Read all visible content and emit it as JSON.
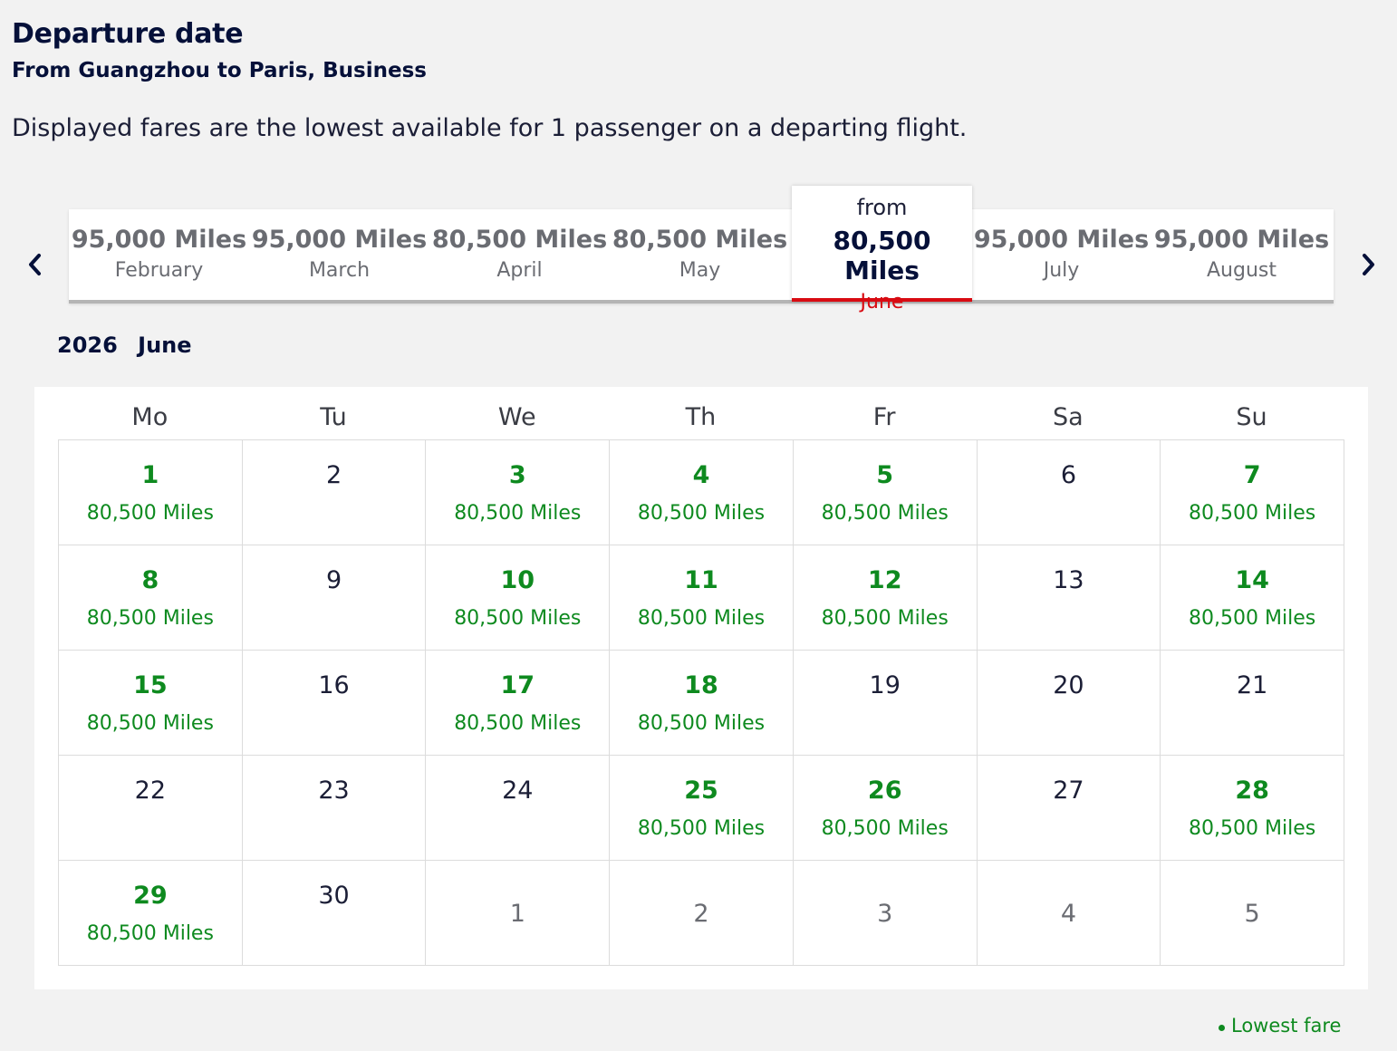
{
  "header": {
    "title": "Departure date",
    "subtitle": "From Guangzhou to Paris, Business",
    "note": "Displayed fares are the lowest available for 1 passenger on a departing flight."
  },
  "carousel": {
    "prev_icon": "chevron-left-icon",
    "next_icon": "chevron-right-icon",
    "months": [
      {
        "price": "95,000 Miles",
        "month": "February"
      },
      {
        "price": "95,000 Miles",
        "month": "March"
      },
      {
        "price": "80,500 Miles",
        "month": "April"
      },
      {
        "price": "80,500 Miles",
        "month": "May"
      },
      {
        "from": "from",
        "price": "80,500 Miles",
        "month": "June",
        "selected": true
      },
      {
        "price": "95,000 Miles",
        "month": "July"
      },
      {
        "price": "95,000 Miles",
        "month": "August"
      }
    ]
  },
  "calendar": {
    "year": "2026",
    "month": "June",
    "weekdays": [
      "Mo",
      "Tu",
      "We",
      "Th",
      "Fr",
      "Sa",
      "Su"
    ],
    "days": [
      {
        "day": "1",
        "price": "80,500 Miles"
      },
      {
        "day": "2"
      },
      {
        "day": "3",
        "price": "80,500 Miles"
      },
      {
        "day": "4",
        "price": "80,500 Miles"
      },
      {
        "day": "5",
        "price": "80,500 Miles"
      },
      {
        "day": "6"
      },
      {
        "day": "7",
        "price": "80,500 Miles"
      },
      {
        "day": "8",
        "price": "80,500 Miles"
      },
      {
        "day": "9"
      },
      {
        "day": "10",
        "price": "80,500 Miles"
      },
      {
        "day": "11",
        "price": "80,500 Miles"
      },
      {
        "day": "12",
        "price": "80,500 Miles"
      },
      {
        "day": "13"
      },
      {
        "day": "14",
        "price": "80,500 Miles"
      },
      {
        "day": "15",
        "price": "80,500 Miles"
      },
      {
        "day": "16"
      },
      {
        "day": "17",
        "price": "80,500 Miles"
      },
      {
        "day": "18",
        "price": "80,500 Miles"
      },
      {
        "day": "19"
      },
      {
        "day": "20"
      },
      {
        "day": "21"
      },
      {
        "day": "22"
      },
      {
        "day": "23"
      },
      {
        "day": "24"
      },
      {
        "day": "25",
        "price": "80,500 Miles"
      },
      {
        "day": "26",
        "price": "80,500 Miles"
      },
      {
        "day": "27"
      },
      {
        "day": "28",
        "price": "80,500 Miles"
      },
      {
        "day": "29",
        "price": "80,500 Miles"
      },
      {
        "day": "30"
      },
      {
        "day": "1",
        "outside": true
      },
      {
        "day": "2",
        "outside": true
      },
      {
        "day": "3",
        "outside": true
      },
      {
        "day": "4",
        "outside": true
      },
      {
        "day": "5",
        "outside": true
      }
    ]
  },
  "legend": {
    "label": "Lowest fare",
    "color": "#0e8a1f"
  },
  "colors": {
    "navy": "#051039",
    "available": "#0e8a1f",
    "accent": "#d80b12"
  }
}
